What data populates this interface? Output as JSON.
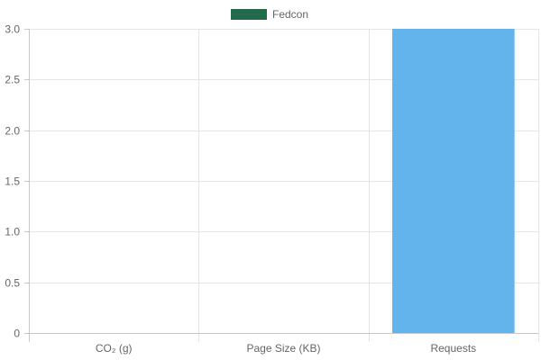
{
  "chart_data": {
    "type": "bar",
    "categories": [
      "CO₂ (g)",
      "Page Size (KB)",
      "Requests"
    ],
    "series": [
      {
        "name": "Fedcon",
        "values": [
          0,
          0,
          3
        ],
        "legend_color": "#236b4a",
        "bar_colors": [
          "#236b4a",
          "#236b4a",
          "#63b3ed"
        ]
      }
    ],
    "yticks": [
      "0",
      "0.5",
      "1.0",
      "1.5",
      "2.0",
      "2.5",
      "3.0"
    ],
    "ylim": [
      0,
      3
    ],
    "grid": true,
    "legend_position": "top"
  }
}
